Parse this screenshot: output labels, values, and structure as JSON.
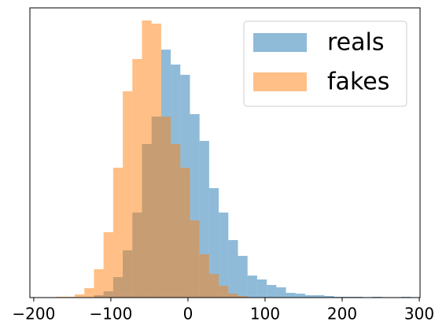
{
  "chart_data": {
    "type": "histogram",
    "xlim": [
      -205,
      301
    ],
    "ylim": [
      0,
      368
    ],
    "xticks": [
      {
        "value": -200,
        "label": "−200"
      },
      {
        "value": -100,
        "label": "−100"
      },
      0,
      100,
      200,
      300
    ],
    "legend": "upper right",
    "series": [
      {
        "name": "reals",
        "color": "#1f77b4",
        "bins": [
          -121.9,
          -109.45,
          -97.0,
          -84.55,
          -72.1,
          -59.65,
          -47.2,
          -34.75,
          -22.3,
          -9.85,
          2.6,
          15.05,
          27.5,
          39.95,
          52.4,
          64.85,
          77.3,
          89.75,
          102.2,
          114.65,
          127.1,
          139.55,
          152.0,
          164.45,
          176.9,
          189.35,
          201.8,
          214.25,
          226.7,
          239.15,
          251.6,
          264.05,
          276.5,
          288.95
        ],
        "values": [
          3,
          8,
          26,
          60,
          108,
          195,
          230,
          315,
          296,
          283,
          233,
          199,
          139,
          108,
          73,
          53,
          28,
          23,
          16,
          13,
          6,
          5,
          3,
          3,
          2,
          1,
          1,
          1,
          0,
          1,
          0,
          0,
          1
        ]
      },
      {
        "name": "fakes",
        "color": "#ff7f0e",
        "bins": [
          -171.7,
          -159.25,
          -146.8,
          -134.35,
          -121.9,
          -109.45,
          -97.0,
          -84.55,
          -72.1,
          -59.65,
          -47.2,
          -34.75,
          -22.3,
          -9.85,
          2.6,
          15.05,
          27.5,
          39.95,
          52.4,
          64.85,
          77.3
        ],
        "values": [
          1,
          1,
          4,
          12,
          36,
          83,
          165,
          262,
          303,
          352,
          348,
          230,
          195,
          165,
          98,
          55,
          30,
          15,
          5,
          2
        ]
      }
    ]
  }
}
